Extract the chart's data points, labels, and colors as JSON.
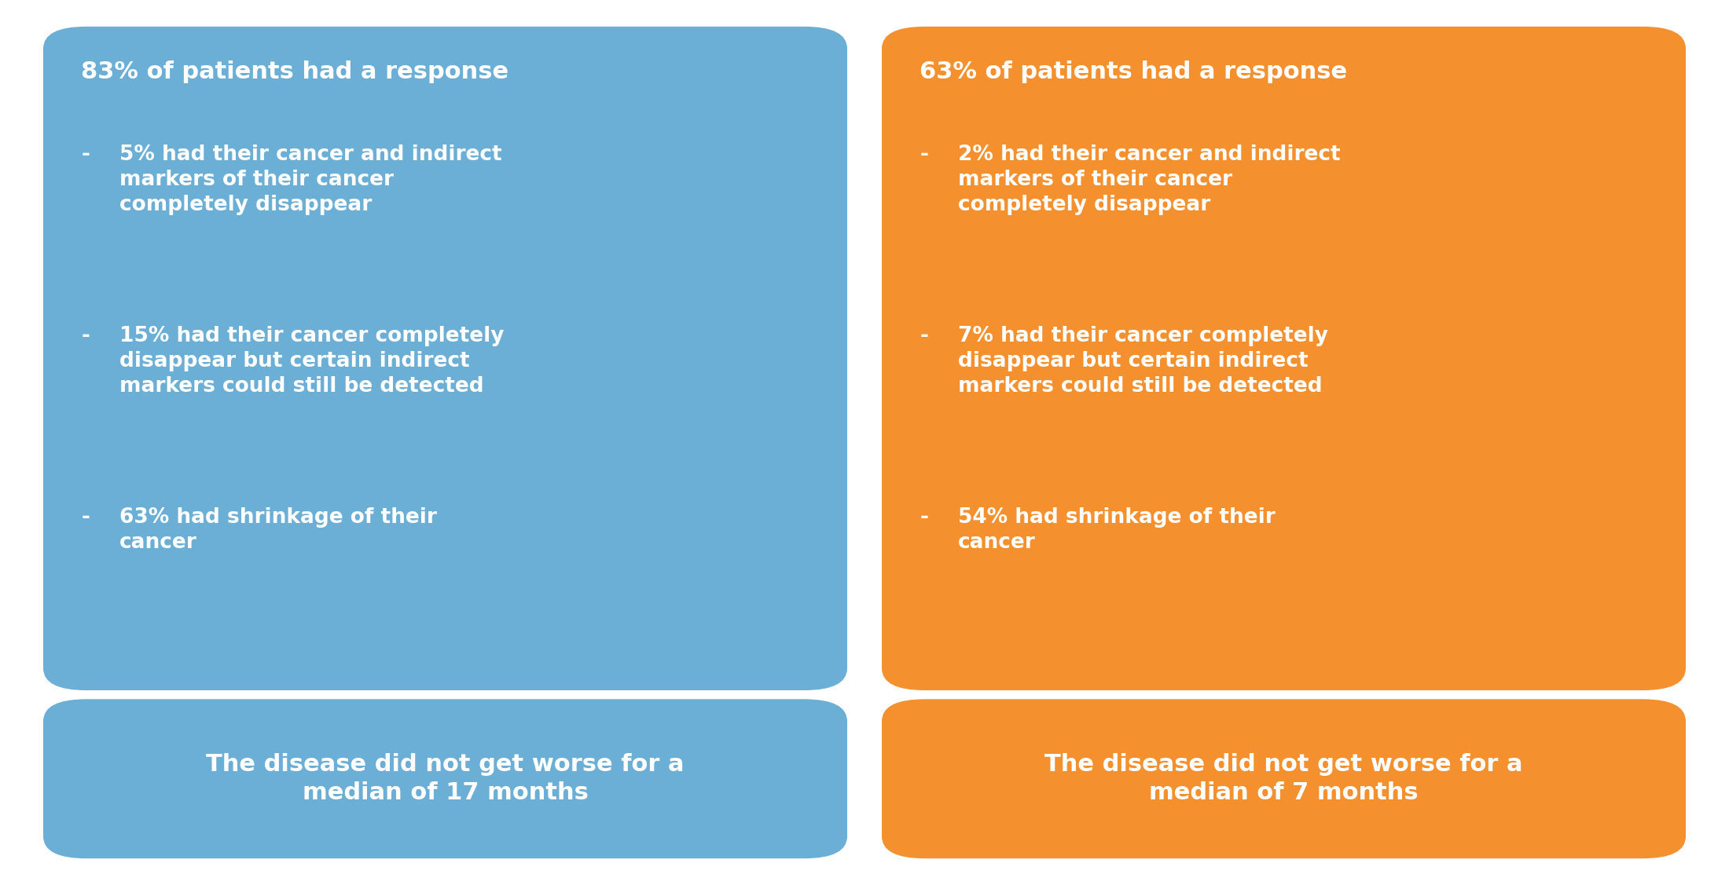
{
  "background_color": "#ffffff",
  "blue_color": "#6BAED6",
  "orange_color": "#F5902E",
  "text_color": "#ffffff",
  "left_top_title": "83% of patients had a response",
  "left_top_bullets": [
    "5% had their cancer and indirect\nmarkers of their cancer\ncompletely disappear",
    "15% had their cancer completely\ndisappear but certain indirect\nmarkers could still be detected",
    "63% had shrinkage of their\ncancer"
  ],
  "right_top_title": "63% of patients had a response",
  "right_top_bullets": [
    "2% had their cancer and indirect\nmarkers of their cancer\ncompletely disappear",
    "7% had their cancer completely\ndisappear but certain indirect\nmarkers could still be detected",
    "54% had shrinkage of their\ncancer"
  ],
  "left_bottom_text": "The disease did not get worse for a\nmedian of 17 months",
  "right_bottom_text": "The disease did not get worse for a\nmedian of 7 months",
  "fig_width": 22.0,
  "fig_height": 11.27
}
